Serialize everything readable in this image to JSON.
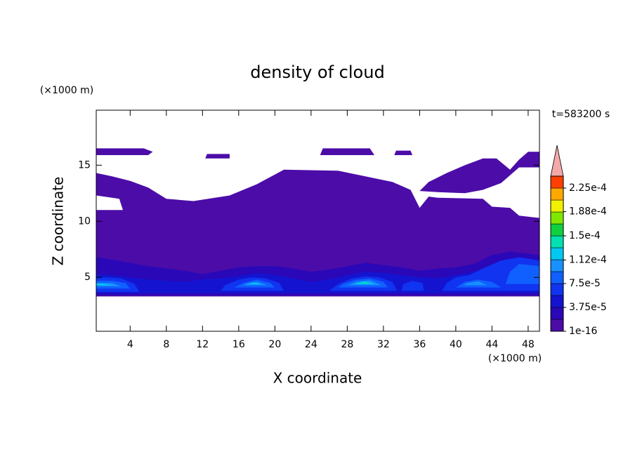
{
  "chart_data": {
    "type": "contour",
    "title": "density of cloud",
    "xlabel": "X coordinate",
    "ylabel": "Z coordinate",
    "x_unit": "(×1000 m)",
    "y_unit": "(×1000 m)",
    "time_label": "t=583200 s",
    "xlim": [
      0.25,
      49.25
    ],
    "ylim": [
      0.2,
      19.9
    ],
    "xticks": [
      4,
      8,
      12,
      16,
      20,
      24,
      28,
      32,
      36,
      40,
      44,
      48
    ],
    "yticks": [
      5,
      10,
      15
    ],
    "colorbar": {
      "levels": [
        1e-16,
        1.875e-05,
        3.75e-05,
        5.625e-05,
        7.5e-05,
        9.375e-05,
        0.0001125,
        0.00013125,
        0.00015,
        0.00016875,
        0.0001875,
        0.00020625,
        0.000225,
        0.00024375
      ],
      "colors": [
        "#4c0ca8",
        "#2a08b8",
        "#1414d0",
        "#1034f0",
        "#1060ff",
        "#1890ff",
        "#00c8f0",
        "#00e0b0",
        "#10d040",
        "#80e800",
        "#f0f000",
        "#ffa800",
        "#ff4000"
      ],
      "extend_color": "#f4a8a8",
      "ticks": [
        1e-16,
        {
          "value": 3.75e-05,
          "label": "3.75e-5"
        },
        {
          "value": 7.5e-05,
          "label": "7.5e-5"
        },
        {
          "value": 0.000112,
          "label": "1.12e-4"
        },
        {
          "value": 0.00015,
          "label": "1.5e-4"
        },
        {
          "value": 0.000188,
          "label": "1.88e-4"
        },
        {
          "value": 0.000225,
          "label": "2.25e-4"
        }
      ]
    },
    "contours": [
      {
        "level": 1e-16,
        "x": [
          0.25,
          49.25,
          49.25,
          47,
          46,
          44,
          43,
          38,
          37,
          36,
          35,
          33,
          30,
          27,
          21,
          18,
          15,
          11,
          8,
          6,
          4,
          2,
          0.25,
          0.25,
          2.8,
          3.2,
          0.25
        ],
        "z": [
          3.3,
          3.3,
          10.3,
          10.5,
          11.2,
          11.3,
          12.0,
          12.1,
          12.2,
          11.2,
          12.8,
          13.5,
          14.0,
          14.5,
          14.6,
          13.3,
          12.3,
          11.8,
          12.0,
          13.0,
          13.6,
          14.0,
          14.3,
          12.3,
          12.0,
          11.0,
          11.0
        ]
      },
      {
        "level": 1e-16,
        "x": [
          0.25,
          6,
          6.5,
          5.5,
          0.25
        ],
        "z": [
          15.9,
          15.9,
          16.2,
          16.5,
          16.5
        ]
      },
      {
        "level": 1e-16,
        "x": [
          12.3,
          15,
          15,
          12.5
        ],
        "z": [
          15.6,
          15.6,
          16.0,
          16.0
        ]
      },
      {
        "level": 1e-16,
        "x": [
          25,
          31,
          30.5,
          25.3
        ],
        "z": [
          15.9,
          15.9,
          16.5,
          16.5
        ]
      },
      {
        "level": 1e-16,
        "x": [
          33.2,
          35.2,
          35,
          33.4
        ],
        "z": [
          15.9,
          15.9,
          16.3,
          16.3
        ]
      },
      {
        "level": 1e-16,
        "x": [
          36,
          38,
          41,
          43,
          45,
          47,
          49.25,
          49.25,
          48,
          47,
          46,
          44.5,
          43,
          41,
          39,
          37
        ],
        "z": [
          12.7,
          12.6,
          12.5,
          12.8,
          13.4,
          14.8,
          14.8,
          16.2,
          16.2,
          15.5,
          14.6,
          15.6,
          15.6,
          15.0,
          14.3,
          13.5
        ]
      },
      {
        "level": 1.875e-05,
        "x": [
          0.25,
          49.25,
          49.25,
          46,
          44,
          42,
          40,
          38,
          36,
          34,
          32,
          30,
          28,
          26,
          24,
          22,
          20,
          18,
          16,
          14,
          12,
          10,
          8,
          6,
          4,
          2,
          0.25
        ],
        "z": [
          3.4,
          3.4,
          7.0,
          7.3,
          7.0,
          6.2,
          5.9,
          5.8,
          5.6,
          5.9,
          6.1,
          6.3,
          6.0,
          5.7,
          5.5,
          5.8,
          6.0,
          6.0,
          5.9,
          5.6,
          5.3,
          5.6,
          5.8,
          6.0,
          6.3,
          6.6,
          6.8
        ]
      },
      {
        "level": 3.75e-05,
        "x": [
          0.25,
          49.25,
          49.25,
          46,
          44,
          42,
          40,
          38,
          36,
          34,
          32,
          30,
          28,
          26,
          24,
          22,
          20,
          18,
          16,
          14,
          12,
          10,
          8,
          6,
          4,
          2,
          0.25
        ],
        "z": [
          3.6,
          3.6,
          5.6,
          6.2,
          6.0,
          5.5,
          5.2,
          4.9,
          5.0,
          5.2,
          5.4,
          5.5,
          5.2,
          4.8,
          4.6,
          4.9,
          5.2,
          5.4,
          5.1,
          4.9,
          4.8,
          4.6,
          4.7,
          4.8,
          5.0,
          5.2,
          5.3
        ]
      },
      {
        "level": 5.625e-05,
        "x": [
          0.25,
          5,
          4.5,
          3,
          1.5,
          0.25
        ],
        "z": [
          3.7,
          3.7,
          4.4,
          4.9,
          5.0,
          5.0
        ]
      },
      {
        "level": 5.625e-05,
        "x": [
          14,
          21,
          20.5,
          19,
          17.5,
          16,
          14.5
        ],
        "z": [
          3.8,
          3.8,
          4.5,
          4.9,
          5.0,
          4.8,
          4.3
        ]
      },
      {
        "level": 5.625e-05,
        "x": [
          26,
          33.5,
          33,
          31.5,
          30,
          28.5,
          27
        ],
        "z": [
          3.8,
          3.8,
          4.6,
          5.0,
          5.1,
          4.9,
          4.4
        ]
      },
      {
        "level": 5.625e-05,
        "x": [
          34,
          36.5,
          36.3,
          35.2,
          34.2
        ],
        "z": [
          3.8,
          3.8,
          4.5,
          4.7,
          4.4
        ]
      },
      {
        "level": 5.625e-05,
        "x": [
          38.5,
          49.25,
          49.25,
          47,
          45,
          43,
          41.5,
          40,
          39
        ],
        "z": [
          3.8,
          3.8,
          6.5,
          6.8,
          6.5,
          5.8,
          5.2,
          5.0,
          4.5
        ]
      },
      {
        "level": 7.5e-05,
        "x": [
          0.25,
          4,
          3.5,
          2,
          0.25
        ],
        "z": [
          4.0,
          4.0,
          4.5,
          4.7,
          4.7
        ]
      },
      {
        "level": 7.5e-05,
        "x": [
          15.5,
          20,
          19.5,
          18,
          16.5
        ],
        "z": [
          4.1,
          4.1,
          4.5,
          4.8,
          4.5
        ]
      },
      {
        "level": 7.5e-05,
        "x": [
          27,
          32.5,
          32,
          30.5,
          29,
          27.5
        ],
        "z": [
          4.1,
          4.1,
          4.6,
          4.9,
          4.8,
          4.4
        ]
      },
      {
        "level": 7.5e-05,
        "x": [
          40,
          45,
          44,
          42.5,
          41
        ],
        "z": [
          4.1,
          4.1,
          4.6,
          4.8,
          4.6
        ]
      },
      {
        "level": 7.5e-05,
        "x": [
          45.5,
          49.25,
          49.25,
          47,
          46
        ],
        "z": [
          4.4,
          4.4,
          6.0,
          6.2,
          5.5
        ]
      },
      {
        "level": 9.375e-05,
        "x": [
          0.25,
          3,
          2,
          0.25
        ],
        "z": [
          4.2,
          4.2,
          4.5,
          4.5
        ]
      },
      {
        "level": 9.375e-05,
        "x": [
          16.5,
          19.2,
          18,
          17
        ],
        "z": [
          4.3,
          4.3,
          4.6,
          4.5
        ]
      },
      {
        "level": 9.375e-05,
        "x": [
          28,
          31.8,
          30.5,
          29
        ],
        "z": [
          4.3,
          4.3,
          4.75,
          4.6
        ]
      },
      {
        "level": 9.375e-05,
        "x": [
          40.8,
          43.5,
          42.5,
          41.3
        ],
        "z": [
          4.3,
          4.3,
          4.65,
          4.5
        ]
      },
      {
        "level": 0.0001125,
        "x": [
          0.25,
          2,
          1,
          0.25
        ],
        "z": [
          4.3,
          4.3,
          4.45,
          4.45
        ]
      },
      {
        "level": 0.0001125,
        "x": [
          17,
          18.6,
          17.7
        ],
        "z": [
          4.4,
          4.4,
          4.55
        ]
      },
      {
        "level": 0.0001125,
        "x": [
          28.8,
          31,
          30,
          29.3
        ],
        "z": [
          4.4,
          4.4,
          4.65,
          4.55
        ]
      },
      {
        "level": 0.00013125,
        "x": [
          29.3,
          30.5,
          29.8
        ],
        "z": [
          4.45,
          4.45,
          4.6
        ]
      }
    ]
  }
}
